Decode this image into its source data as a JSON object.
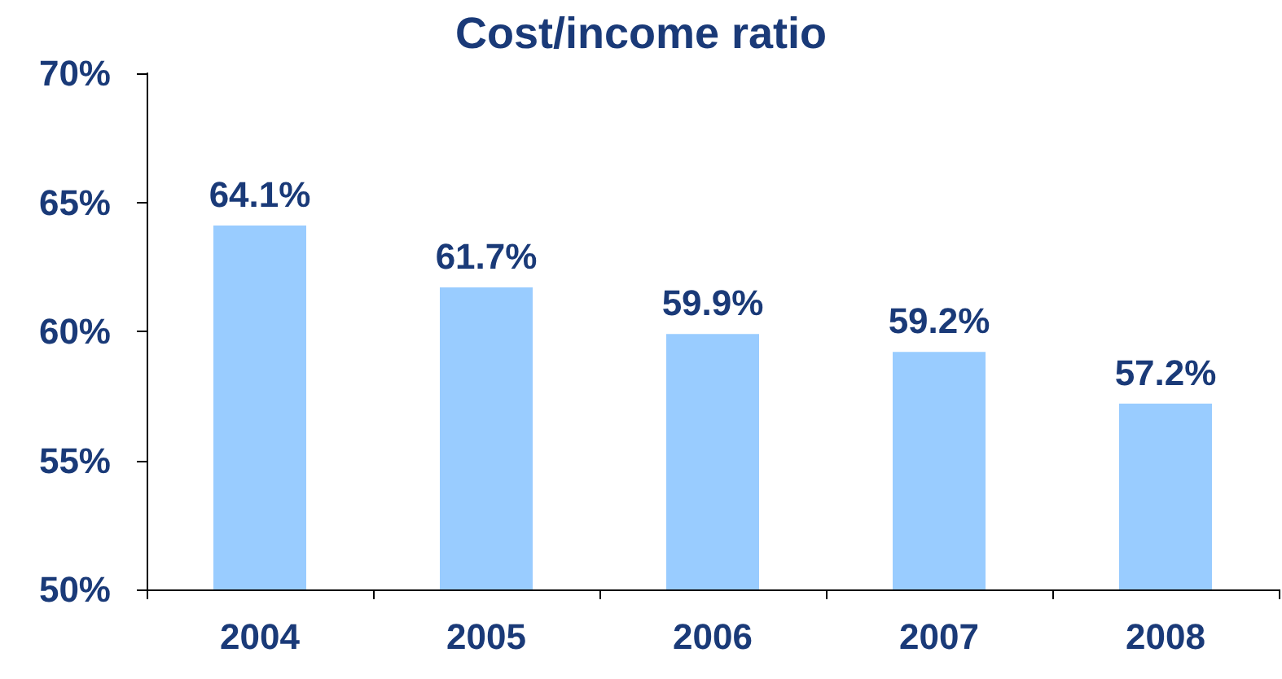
{
  "chart_data": {
    "type": "bar",
    "title": "Cost/income ratio",
    "categories": [
      "2004",
      "2005",
      "2006",
      "2007",
      "2008"
    ],
    "values": [
      64.1,
      61.7,
      59.9,
      59.2,
      57.2
    ],
    "value_labels": [
      "64.1%",
      "61.7%",
      "59.9%",
      "59.2%",
      "57.2%"
    ],
    "color": "#99ccff",
    "ylim": [
      50,
      70
    ],
    "yticks": [
      {
        "value": 50,
        "label": "50%"
      },
      {
        "value": 55,
        "label": "55%"
      },
      {
        "value": 60,
        "label": "60%"
      },
      {
        "value": 65,
        "label": "65%"
      },
      {
        "value": 70,
        "label": "70%"
      }
    ]
  }
}
